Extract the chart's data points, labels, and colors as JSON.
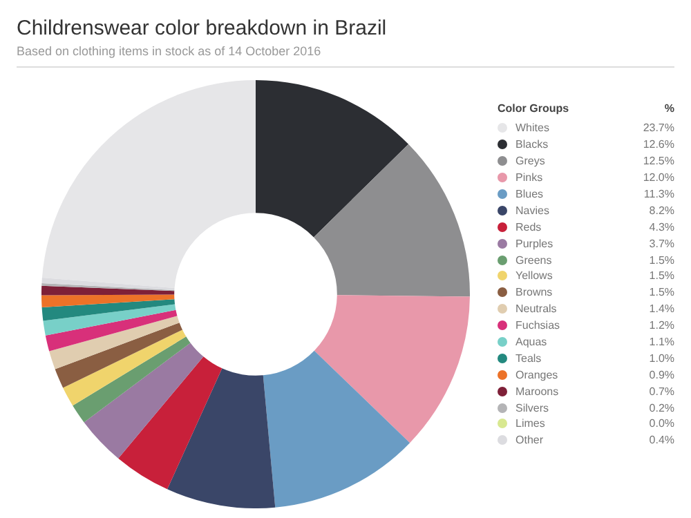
{
  "chart_data": {
    "type": "donut",
    "title": "Childrenswear color breakdown in Brazil",
    "subtitle": "Based on clothing items in stock as of 14 October 2016",
    "legend_title": "Color Groups",
    "annotations": [
      "%"
    ],
    "legend": "right",
    "categories": [
      "Whites",
      "Blacks",
      "Greys",
      "Pinks",
      "Blues",
      "Navies",
      "Reds",
      "Purples",
      "Greens",
      "Yellows",
      "Browns",
      "Neutrals",
      "Fuchsias",
      "Aquas",
      "Teals",
      "Oranges",
      "Maroons",
      "Silvers",
      "Limes",
      "Other"
    ],
    "values": [
      23.7,
      12.6,
      12.5,
      12.0,
      11.3,
      8.2,
      4.3,
      3.7,
      1.5,
      1.5,
      1.5,
      1.4,
      1.2,
      1.1,
      1.0,
      0.9,
      0.7,
      0.2,
      0.0,
      0.4
    ],
    "value_labels": [
      "23.7%",
      "12.6%",
      "12.5%",
      "12.0%",
      "11.3%",
      "8.2%",
      "4.3%",
      "3.7%",
      "1.5%",
      "1.5%",
      "1.5%",
      "1.4%",
      "1.2%",
      "1.1%",
      "1.0%",
      "0.9%",
      "0.7%",
      "0.2%",
      "0.0%",
      "0.4%"
    ],
    "colors": [
      "#e6e6e8",
      "#2c2e33",
      "#8e8e90",
      "#e898aa",
      "#6a9cc4",
      "#3a4668",
      "#c8203a",
      "#9a7aa2",
      "#6a9e70",
      "#f0d46c",
      "#8a5e42",
      "#e0cdb0",
      "#d8307a",
      "#78d0c8",
      "#23897f",
      "#ec7228",
      "#7e2038",
      "#b4b4b6",
      "#d8e890",
      "#dcdce0"
    ]
  }
}
